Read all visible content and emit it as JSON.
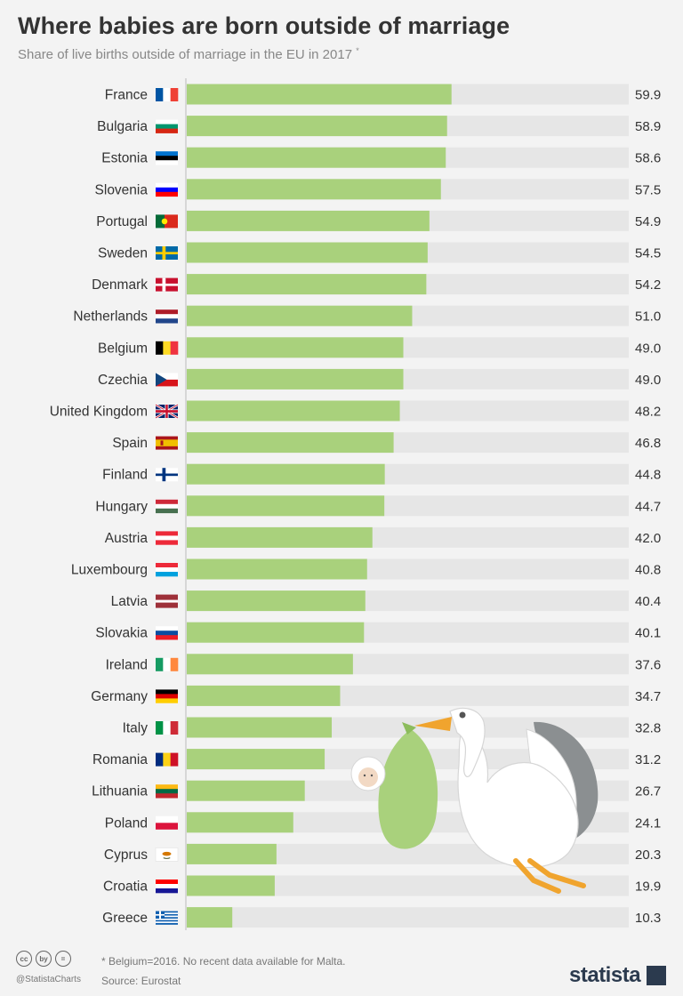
{
  "header": {
    "title": "Where babies are born outside of marriage",
    "subtitle": "Share of live births outside of marriage in the EU in 2017",
    "subtitle_mark": "*"
  },
  "footer": {
    "note": "* Belgium=2016. No recent data available for Malta.",
    "source": "Source: Eurostat",
    "handle": "@StatistaCharts",
    "brand": "statista",
    "cc_icons": [
      "cc",
      "by",
      "="
    ]
  },
  "colors": {
    "bar": "#a9d17c",
    "track": "#e6e6e6",
    "background": "#f3f3f3"
  },
  "chart_data": {
    "type": "bar",
    "orientation": "horizontal",
    "title": "Where babies are born outside of marriage",
    "subtitle": "Share of live births outside of marriage in the EU in 2017",
    "xlim": [
      0,
      100
    ],
    "grid": false,
    "data_labels": true,
    "categories": [
      "France",
      "Bulgaria",
      "Estonia",
      "Slovenia",
      "Portugal",
      "Sweden",
      "Denmark",
      "Netherlands",
      "Belgium",
      "Czechia",
      "United Kingdom",
      "Spain",
      "Finland",
      "Hungary",
      "Austria",
      "Luxembourg",
      "Latvia",
      "Slovakia",
      "Ireland",
      "Germany",
      "Italy",
      "Romania",
      "Lithuania",
      "Poland",
      "Cyprus",
      "Croatia",
      "Greece"
    ],
    "values": [
      59.9,
      58.9,
      58.6,
      57.5,
      54.9,
      54.5,
      54.2,
      51.0,
      49.0,
      49.0,
      48.2,
      46.8,
      44.8,
      44.7,
      42.0,
      40.8,
      40.4,
      40.1,
      37.6,
      34.7,
      32.8,
      31.2,
      26.7,
      24.1,
      20.3,
      19.9,
      10.3
    ],
    "value_labels": [
      "59.9",
      "58.9",
      "58.6",
      "57.5",
      "54.9",
      "54.5",
      "54.2",
      "51.0",
      "49.0",
      "49.0",
      "48.2",
      "46.8",
      "44.8",
      "44.7",
      "42.0",
      "40.8",
      "40.4",
      "40.1",
      "37.6",
      "34.7",
      "32.8",
      "31.2",
      "26.7",
      "24.1",
      "20.3",
      "19.9",
      "10.3"
    ],
    "flags": [
      "france",
      "bulgaria",
      "estonia",
      "slovenia",
      "portugal",
      "sweden",
      "denmark",
      "netherlands",
      "belgium",
      "czechia",
      "united-kingdom",
      "spain",
      "finland",
      "hungary",
      "austria",
      "luxembourg",
      "latvia",
      "slovakia",
      "ireland",
      "germany",
      "italy",
      "romania",
      "lithuania",
      "poland",
      "cyprus",
      "croatia",
      "greece"
    ]
  }
}
